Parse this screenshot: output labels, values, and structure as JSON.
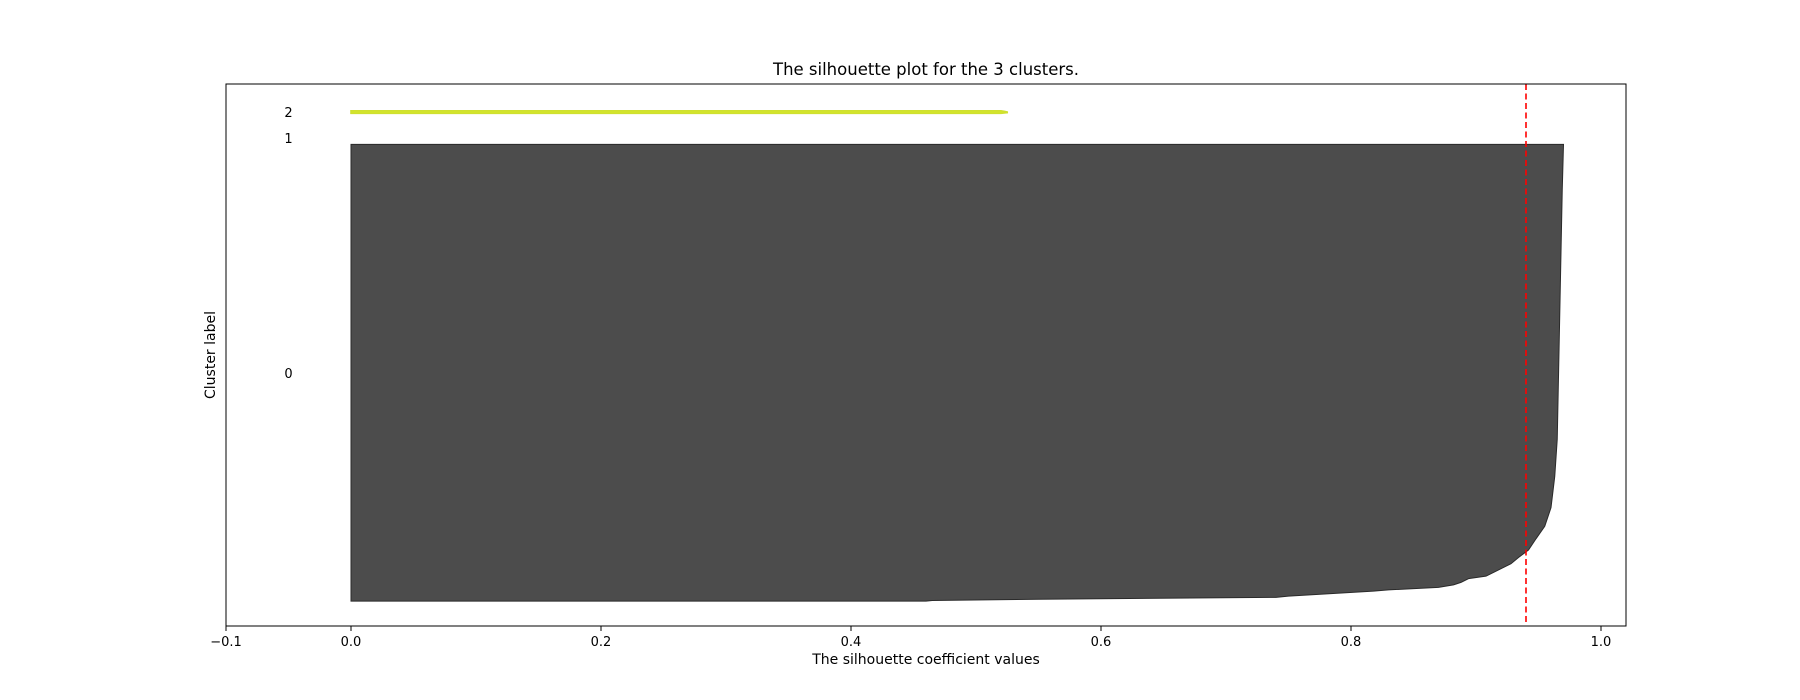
{
  "chart_data": {
    "type": "area",
    "title": "The silhouette plot for the 3 clusters.",
    "xlabel": "The silhouette coefficient values",
    "ylabel": "Cluster label",
    "xlim": [
      -0.1,
      1.02
    ],
    "xticks": [
      -0.1,
      0.0,
      0.2,
      0.4,
      0.6,
      0.8,
      1.0
    ],
    "xtick_labels": [
      "−0.1",
      "0.0",
      "0.2",
      "0.4",
      "0.6",
      "0.8",
      "1.0"
    ],
    "ylim": [
      0,
      870
    ],
    "grid": false,
    "average_silhouette_score": 0.94,
    "average_line_color": "#ff0000",
    "clusters": [
      {
        "label": "0",
        "y_lower": 40,
        "y_upper": 773,
        "color": "#4c4c4c",
        "edge_color": "#2a2a2a",
        "sorted_values": [
          [
            40,
            0.46
          ],
          [
            41,
            0.465
          ],
          [
            43,
            0.55
          ],
          [
            46,
            0.74
          ],
          [
            48,
            0.75
          ],
          [
            56,
            0.818
          ],
          [
            58,
            0.83
          ],
          [
            62,
            0.87
          ],
          [
            66,
            0.882
          ],
          [
            70,
            0.888
          ],
          [
            76,
            0.894
          ],
          [
            80,
            0.908
          ],
          [
            86,
            0.914
          ],
          [
            92,
            0.92
          ],
          [
            100,
            0.928
          ],
          [
            110,
            0.934
          ],
          [
            122,
            0.942
          ],
          [
            140,
            0.948
          ],
          [
            160,
            0.955
          ],
          [
            190,
            0.96
          ],
          [
            240,
            0.963
          ],
          [
            300,
            0.965
          ],
          [
            400,
            0.966
          ],
          [
            500,
            0.967
          ],
          [
            600,
            0.968
          ],
          [
            700,
            0.969
          ],
          [
            773,
            0.97
          ]
        ]
      },
      {
        "label": "1",
        "y_lower": 783,
        "y_upper": 783,
        "color": "#2c8c80",
        "edge_color": "#2c8c80",
        "sorted_values": [
          [
            783,
            0.0
          ],
          [
            783,
            0.0
          ]
        ]
      },
      {
        "label": "2",
        "y_lower": 823,
        "y_upper": 827,
        "color": "#d6e826",
        "edge_color": "#cfe030",
        "sorted_values": [
          [
            823,
            0.52
          ],
          [
            824,
            0.525
          ],
          [
            825,
            0.525
          ],
          [
            826,
            0.523
          ],
          [
            827,
            0.52
          ]
        ]
      }
    ]
  }
}
